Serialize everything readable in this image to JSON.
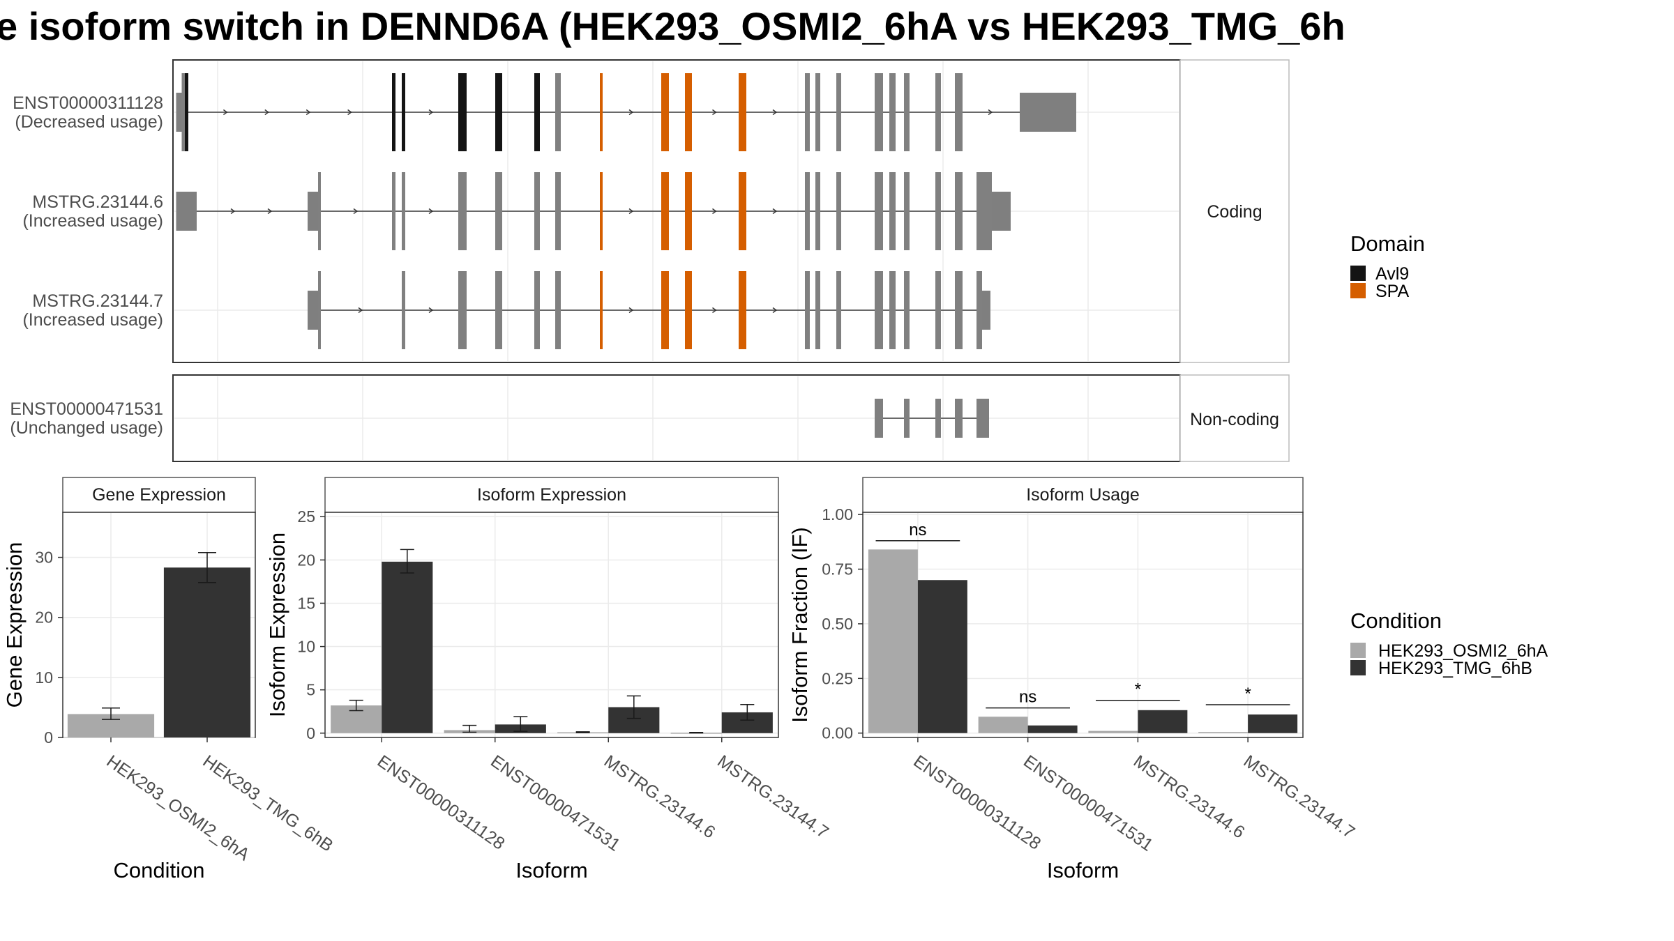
{
  "title": "e isoform switch in DENND6A (HEK293_OSMI2_6hA vs HEK293_TMG_6h",
  "colors": {
    "utr": "#7f7f7f",
    "cds": "#808080",
    "intron": "#555555",
    "Avl9": "#141414",
    "SPA": "#d55e00",
    "cond_a": "#a9a9a9",
    "cond_b": "#333333"
  },
  "structure": {
    "coding_label": "Coding",
    "noncoding_label": "Non-coding",
    "transcripts": [
      {
        "id": "ENST00000311128",
        "usage": "(Decreased usage)",
        "group": "coding",
        "utr": [
          [
            4.5,
            12.5
          ],
          [
            1214,
            1295
          ]
        ],
        "cds": [
          [
            12.5,
            17
          ],
          [
            314,
            319
          ],
          [
            328,
            333
          ],
          [
            409,
            421
          ],
          [
            462,
            472
          ],
          [
            518,
            526
          ],
          [
            548,
            556
          ],
          [
            612,
            616
          ],
          [
            700,
            711
          ],
          [
            734,
            744
          ],
          [
            811,
            822
          ],
          [
            906,
            913
          ],
          [
            921,
            928
          ],
          [
            951,
            958
          ],
          [
            1006,
            1018
          ],
          [
            1027,
            1036
          ],
          [
            1048,
            1056
          ],
          [
            1093,
            1101
          ],
          [
            1121,
            1132
          ]
        ],
        "domains": [
          {
            "name": "Avl9",
            "segments": [
              [
                17,
                22
              ],
              [
                314,
                319
              ],
              [
                328,
                333
              ],
              [
                409,
                421
              ],
              [
                462,
                472
              ],
              [
                518,
                526
              ]
            ]
          },
          {
            "name": "SPA",
            "segments": [
              [
                612,
                616
              ],
              [
                700,
                711
              ],
              [
                734,
                744
              ],
              [
                811,
                822
              ]
            ]
          }
        ]
      },
      {
        "id": "MSTRG.23144.6",
        "usage": "(Increased usage)",
        "group": "coding",
        "utr": [
          [
            4.5,
            34
          ],
          [
            193,
            208
          ],
          [
            1174,
            1201
          ]
        ],
        "cds": [
          [
            208,
            212
          ],
          [
            314,
            319
          ],
          [
            328,
            333
          ],
          [
            409,
            421
          ],
          [
            462,
            472
          ],
          [
            518,
            526
          ],
          [
            548,
            556
          ],
          [
            612,
            616
          ],
          [
            700,
            711
          ],
          [
            734,
            744
          ],
          [
            811,
            822
          ],
          [
            906,
            913
          ],
          [
            921,
            928
          ],
          [
            951,
            958
          ],
          [
            1006,
            1018
          ],
          [
            1027,
            1036
          ],
          [
            1048,
            1056
          ],
          [
            1093,
            1101
          ],
          [
            1121,
            1132
          ],
          [
            1152,
            1174
          ]
        ],
        "domains": [
          {
            "name": "SPA",
            "segments": [
              [
                612,
                616
              ],
              [
                700,
                711
              ],
              [
                734,
                744
              ],
              [
                811,
                822
              ]
            ]
          }
        ]
      },
      {
        "id": "MSTRG.23144.7",
        "usage": "(Increased usage)",
        "group": "coding",
        "utr": [
          [
            193,
            208
          ],
          [
            1160,
            1172
          ]
        ],
        "cds": [
          [
            208,
            212
          ],
          [
            328,
            333
          ],
          [
            409,
            421
          ],
          [
            462,
            472
          ],
          [
            518,
            526
          ],
          [
            548,
            556
          ],
          [
            612,
            616
          ],
          [
            700,
            711
          ],
          [
            734,
            744
          ],
          [
            811,
            822
          ],
          [
            906,
            913
          ],
          [
            921,
            928
          ],
          [
            951,
            958
          ],
          [
            1006,
            1018
          ],
          [
            1027,
            1036
          ],
          [
            1048,
            1056
          ],
          [
            1093,
            1101
          ],
          [
            1121,
            1132
          ],
          [
            1152,
            1160
          ]
        ],
        "domains": [
          {
            "name": "SPA",
            "segments": [
              [
                612,
                616
              ],
              [
                700,
                711
              ],
              [
                734,
                744
              ],
              [
                811,
                822
              ]
            ]
          }
        ]
      },
      {
        "id": "ENST00000471531",
        "usage": "(Unchanged usage)",
        "group": "noncoding",
        "utr": [
          [
            1006,
            1018
          ],
          [
            1048,
            1056
          ],
          [
            1093,
            1101
          ],
          [
            1121,
            1132
          ],
          [
            1152,
            1170
          ]
        ],
        "cds": [],
        "domains": []
      }
    ],
    "legend": {
      "title": "Domain",
      "items": [
        {
          "name": "Avl9",
          "color": "#141414"
        },
        {
          "name": "SPA",
          "color": "#d55e00"
        }
      ]
    }
  },
  "chart_data": [
    {
      "type": "bar",
      "title": "Gene Expression",
      "xlabel": "Condition",
      "ylabel": "Gene Expression",
      "categories": [
        "HEK293_OSMI2_6hA",
        "HEK293_TMG_6hB"
      ],
      "values": [
        3.9,
        28.3
      ],
      "errors": [
        [
          3.0,
          4.9
        ],
        [
          25.8,
          30.8
        ]
      ],
      "ylim": [
        0,
        37.5
      ],
      "yticks": [
        0,
        10,
        20,
        30
      ],
      "colors": [
        "#a9a9a9",
        "#333333"
      ]
    },
    {
      "type": "bar",
      "title": "Isoform Expression",
      "xlabel": "Isoform",
      "ylabel": "Isoform Expression",
      "categories": [
        "ENST00000311128",
        "ENST00000471531",
        "MSTRG.23144.6",
        "MSTRG.23144.7"
      ],
      "series": [
        {
          "name": "HEK293_OSMI2_6hA",
          "values": [
            3.2,
            0.35,
            0.1,
            0.05
          ],
          "errors": [
            [
              2.6,
              3.8
            ],
            [
              0.1,
              0.9
            ],
            [
              0.05,
              0.15
            ],
            [
              0.02,
              0.08
            ]
          ]
        },
        {
          "name": "HEK293_TMG_6hB",
          "values": [
            19.8,
            1.0,
            3.0,
            2.4
          ],
          "errors": [
            [
              18.5,
              21.2
            ],
            [
              0.2,
              1.9
            ],
            [
              1.7,
              4.3
            ],
            [
              1.5,
              3.3
            ]
          ]
        }
      ],
      "ylim": [
        -0.5,
        25.5
      ],
      "yticks": [
        0,
        5,
        10,
        15,
        20,
        25
      ]
    },
    {
      "type": "bar",
      "title": "Isoform Usage",
      "xlabel": "Isoform",
      "ylabel": "Isoform Fraction (IF)",
      "categories": [
        "ENST00000311128",
        "ENST00000471531",
        "MSTRG.23144.6",
        "MSTRG.23144.7"
      ],
      "series": [
        {
          "name": "HEK293_OSMI2_6hA",
          "values": [
            0.84,
            0.075,
            0.01,
            0.005
          ]
        },
        {
          "name": "HEK293_TMG_6hB",
          "values": [
            0.7,
            0.035,
            0.105,
            0.085
          ]
        }
      ],
      "significance": [
        "ns",
        "ns",
        "*",
        "*"
      ],
      "significance_y": [
        0.88,
        0.115,
        0.15,
        0.13
      ],
      "ylim": [
        -0.02,
        1.01
      ],
      "yticks": [
        0,
        0.25,
        0.5,
        0.75,
        1.0
      ],
      "ytick_labels": [
        "0.00",
        "0.25",
        "0.50",
        "0.75",
        "1.00"
      ]
    }
  ],
  "condition_legend": {
    "title": "Condition",
    "items": [
      {
        "name": "HEK293_OSMI2_6hA",
        "color": "#a9a9a9"
      },
      {
        "name": "HEK293_TMG_6hB",
        "color": "#333333"
      }
    ]
  }
}
